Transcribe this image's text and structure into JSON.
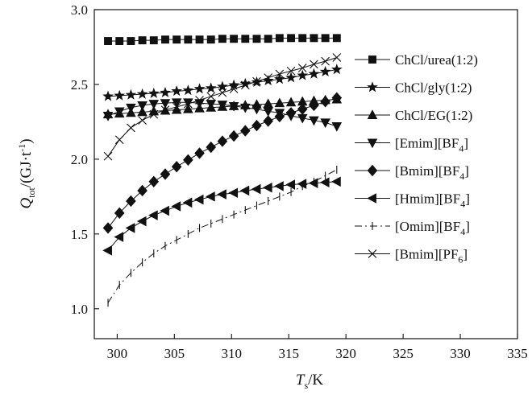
{
  "chart_data": {
    "type": "line",
    "xlabel": {
      "main": "T",
      "sub": "s",
      "unit": "/K"
    },
    "ylabel": {
      "main": "Q",
      "sub": "tot",
      "unit_pre": "/(GJ·t",
      "unit_sup": "-1",
      "unit_post": ")"
    },
    "xlim": [
      298,
      335
    ],
    "ylim": [
      0.8,
      3.0
    ],
    "x_ticks": [
      "300",
      "305",
      "310",
      "315",
      "320",
      "325",
      "330",
      "335"
    ],
    "y_ticks": [
      "1.0",
      "1.5",
      "2.0",
      "2.5",
      "3.0"
    ],
    "x_tick_values": [
      300,
      305,
      310,
      315,
      320,
      325,
      330,
      335
    ],
    "y_tick_values": [
      1.0,
      1.5,
      2.0,
      2.5,
      3.0
    ],
    "grid": false,
    "legend_position": "right",
    "series": [
      {
        "name": "ChCl/urea(1:2)",
        "name_main": "ChCl/urea(1:2)",
        "name_sub": "",
        "name_tail": "",
        "marker": "square",
        "line": "solid",
        "x": [
          299.2,
          300.2,
          301.2,
          302.2,
          303.2,
          304.2,
          305.2,
          306.2,
          307.2,
          308.2,
          309.2,
          310.2,
          311.2,
          312.2,
          313.2,
          314.2,
          315.2,
          316.2,
          317.2,
          318.2,
          319.2
        ],
        "y": [
          2.79,
          2.79,
          2.79,
          2.795,
          2.795,
          2.8,
          2.8,
          2.8,
          2.8,
          2.8,
          2.805,
          2.805,
          2.805,
          2.805,
          2.805,
          2.81,
          2.81,
          2.81,
          2.81,
          2.81,
          2.81
        ]
      },
      {
        "name": "ChCl/gly(1:2)",
        "name_main": "ChCl/gly(1:2)",
        "name_sub": "",
        "name_tail": "",
        "marker": "star",
        "line": "solid",
        "x": [
          299.2,
          300.2,
          301.2,
          302.2,
          303.2,
          304.2,
          305.2,
          306.2,
          307.2,
          308.2,
          309.2,
          310.2,
          311.2,
          312.2,
          313.2,
          314.2,
          315.2,
          316.2,
          317.2,
          318.2,
          319.2
        ],
        "y": [
          2.42,
          2.425,
          2.43,
          2.435,
          2.44,
          2.445,
          2.455,
          2.46,
          2.47,
          2.475,
          2.485,
          2.495,
          2.505,
          2.515,
          2.525,
          2.535,
          2.545,
          2.56,
          2.57,
          2.585,
          2.6
        ]
      },
      {
        "name": "ChCl/EG(1:2)",
        "name_main": "ChCl/EG(1:2)",
        "name_sub": "",
        "name_tail": "",
        "marker": "triangle-up",
        "line": "solid",
        "x": [
          299.2,
          300.2,
          301.2,
          302.2,
          303.2,
          304.2,
          305.2,
          306.2,
          307.2,
          308.2,
          309.2,
          310.2,
          311.2,
          312.2,
          313.2,
          314.2,
          315.2,
          316.2,
          317.2,
          318.2,
          319.2
        ],
        "y": [
          2.3,
          2.305,
          2.31,
          2.315,
          2.32,
          2.325,
          2.33,
          2.335,
          2.34,
          2.345,
          2.35,
          2.355,
          2.36,
          2.365,
          2.37,
          2.375,
          2.38,
          2.385,
          2.39,
          2.395,
          2.4
        ]
      },
      {
        "name": "[Emim][BF4]",
        "name_main": "[Emim][BF",
        "name_sub": "4",
        "name_tail": "]",
        "marker": "triangle-down",
        "line": "solid",
        "x": [
          299.2,
          300.2,
          301.2,
          302.2,
          303.2,
          304.2,
          305.2,
          306.2,
          307.2,
          308.2,
          309.2,
          310.2,
          311.2,
          312.2,
          313.2,
          314.2,
          315.2,
          316.2,
          317.2,
          318.2,
          319.2
        ],
        "y": [
          2.29,
          2.32,
          2.345,
          2.36,
          2.37,
          2.375,
          2.38,
          2.38,
          2.375,
          2.37,
          2.365,
          2.355,
          2.345,
          2.335,
          2.32,
          2.31,
          2.29,
          2.275,
          2.26,
          2.245,
          2.22
        ]
      },
      {
        "name": "[Bmim][BF4]",
        "name_main": "[Bmim][BF",
        "name_sub": "4",
        "name_tail": "]",
        "marker": "diamond",
        "line": "solid",
        "x": [
          299.2,
          300.2,
          301.2,
          302.2,
          303.2,
          304.2,
          305.2,
          306.2,
          307.2,
          308.2,
          309.2,
          310.2,
          311.2,
          312.2,
          313.2,
          314.2,
          315.2,
          316.2,
          317.2,
          318.2,
          319.2
        ],
        "y": [
          1.54,
          1.64,
          1.72,
          1.79,
          1.85,
          1.9,
          1.95,
          1.995,
          2.04,
          2.08,
          2.12,
          2.155,
          2.19,
          2.225,
          2.255,
          2.285,
          2.31,
          2.335,
          2.36,
          2.385,
          2.41
        ]
      },
      {
        "name": "[Hmim][BF4]",
        "name_main": "[Hmim][BF",
        "name_sub": "4",
        "name_tail": "]",
        "marker": "triangle-left",
        "line": "solid",
        "x": [
          299.2,
          300.2,
          301.2,
          302.2,
          303.2,
          304.2,
          305.2,
          306.2,
          307.2,
          308.2,
          309.2,
          310.2,
          311.2,
          312.2,
          313.2,
          314.2,
          315.2,
          316.2,
          317.2,
          318.2,
          319.2
        ],
        "y": [
          1.39,
          1.48,
          1.54,
          1.585,
          1.625,
          1.655,
          1.685,
          1.71,
          1.73,
          1.75,
          1.765,
          1.775,
          1.79,
          1.8,
          1.81,
          1.82,
          1.83,
          1.835,
          1.84,
          1.845,
          1.85
        ]
      },
      {
        "name": "[Omim][BF4]",
        "name_main": "[Omim][BF",
        "name_sub": "4",
        "name_tail": "]",
        "marker": "vbar",
        "line": "dashdot",
        "x": [
          299.2,
          300.2,
          301.2,
          302.2,
          303.2,
          304.2,
          305.2,
          306.2,
          307.2,
          308.2,
          309.2,
          310.2,
          311.2,
          312.2,
          313.2,
          314.2,
          315.2,
          316.2,
          317.2,
          318.2,
          319.2
        ],
        "y": [
          1.04,
          1.16,
          1.24,
          1.31,
          1.37,
          1.42,
          1.46,
          1.5,
          1.54,
          1.57,
          1.6,
          1.63,
          1.66,
          1.69,
          1.72,
          1.75,
          1.78,
          1.82,
          1.85,
          1.89,
          1.93
        ]
      },
      {
        "name": "[Bmim][PF6]",
        "name_main": "[Bmim][PF",
        "name_sub": "6",
        "name_tail": "]",
        "marker": "x",
        "line": "solid",
        "x": [
          299.2,
          300.2,
          301.2,
          302.2,
          303.2,
          304.2,
          305.2,
          306.2,
          307.2,
          308.2,
          309.2,
          310.2,
          311.2,
          312.2,
          313.2,
          314.2,
          315.2,
          316.2,
          317.2,
          318.2,
          319.2
        ],
        "y": [
          2.02,
          2.13,
          2.21,
          2.26,
          2.3,
          2.33,
          2.35,
          2.37,
          2.395,
          2.42,
          2.445,
          2.47,
          2.495,
          2.52,
          2.545,
          2.57,
          2.59,
          2.61,
          2.635,
          2.655,
          2.68
        ]
      }
    ]
  }
}
